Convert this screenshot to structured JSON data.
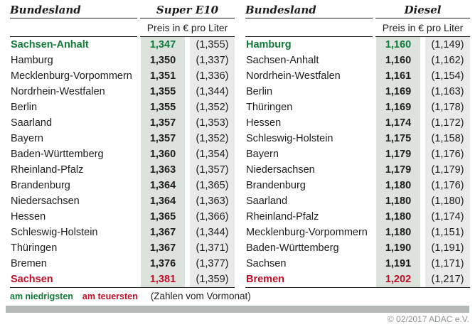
{
  "colors": {
    "green": "#107a38",
    "red": "#c00d25",
    "text": "#1d1d1b",
    "col1_bg": "#dce2dc",
    "col2_bg": "#e9eae9",
    "bar": "#b4bab7",
    "copyright": "#8d9391"
  },
  "header": {
    "bundesland_label": "Bundesland",
    "price_unit_label": "Preis in € pro Liter"
  },
  "legend": {
    "cheapest_label": "am niedrigsten",
    "most_expensive_label": "am teuersten",
    "note": "(Zahlen vom Vormonat)"
  },
  "footer": {
    "copyright": "© 02/2017 ADAC e.V."
  },
  "chart_data": [
    {
      "type": "table",
      "title": "Super E10",
      "unit": "Preis in € pro Liter",
      "columns": [
        "Bundesland",
        "Preis",
        "Vormonat"
      ],
      "rows": [
        {
          "name": "Sachsen-Anhalt",
          "price": "1,347",
          "prev": "(1,355)",
          "highlight": "green"
        },
        {
          "name": "Hamburg",
          "price": "1,350",
          "prev": "(1,337)",
          "highlight": "none"
        },
        {
          "name": "Mecklenburg-Vorpommern",
          "price": "1,351",
          "prev": "(1,336)",
          "highlight": "none"
        },
        {
          "name": "Nordrhein-Westfalen",
          "price": "1,355",
          "prev": "(1,344)",
          "highlight": "none"
        },
        {
          "name": "Berlin",
          "price": "1,355",
          "prev": "(1,352)",
          "highlight": "none"
        },
        {
          "name": "Saarland",
          "price": "1,357",
          "prev": "(1,353)",
          "highlight": "none"
        },
        {
          "name": "Bayern",
          "price": "1,357",
          "prev": "(1,352)",
          "highlight": "none"
        },
        {
          "name": "Baden-Württemberg",
          "price": "1,360",
          "prev": "(1,354)",
          "highlight": "none"
        },
        {
          "name": "Rheinland-Pfalz",
          "price": "1,363",
          "prev": "(1,357)",
          "highlight": "none"
        },
        {
          "name": "Brandenburg",
          "price": "1,364",
          "prev": "(1,365)",
          "highlight": "none"
        },
        {
          "name": "Niedersachsen",
          "price": "1,364",
          "prev": "(1,363)",
          "highlight": "none"
        },
        {
          "name": "Hessen",
          "price": "1,365",
          "prev": "(1,366)",
          "highlight": "none"
        },
        {
          "name": "Schleswig-Holstein",
          "price": "1,367",
          "prev": "(1,344)",
          "highlight": "none"
        },
        {
          "name": "Thüringen",
          "price": "1,367",
          "prev": "(1,371)",
          "highlight": "none"
        },
        {
          "name": "Bremen",
          "price": "1,376",
          "prev": "(1,377)",
          "highlight": "none"
        },
        {
          "name": "Sachsen",
          "price": "1,381",
          "prev": "(1,359)",
          "highlight": "red"
        }
      ]
    },
    {
      "type": "table",
      "title": "Diesel",
      "unit": "Preis in € pro Liter",
      "columns": [
        "Bundesland",
        "Preis",
        "Vormonat"
      ],
      "rows": [
        {
          "name": "Hamburg",
          "price": "1,160",
          "prev": "(1,149)",
          "highlight": "green"
        },
        {
          "name": "Sachsen-Anhalt",
          "price": "1,160",
          "prev": "(1,162)",
          "highlight": "none"
        },
        {
          "name": "Nordrhein-Westfalen",
          "price": "1,161",
          "prev": "(1,154)",
          "highlight": "none"
        },
        {
          "name": "Berlin",
          "price": "1,169",
          "prev": "(1,163)",
          "highlight": "none"
        },
        {
          "name": "Thüringen",
          "price": "1,169",
          "prev": "(1,178)",
          "highlight": "none"
        },
        {
          "name": "Hessen",
          "price": "1,174",
          "prev": "(1,172)",
          "highlight": "none"
        },
        {
          "name": "Schleswig-Holstein",
          "price": "1,175",
          "prev": "(1,158)",
          "highlight": "none"
        },
        {
          "name": "Bayern",
          "price": "1,179",
          "prev": "(1,176)",
          "highlight": "none"
        },
        {
          "name": "Niedersachsen",
          "price": "1,179",
          "prev": "(1,179)",
          "highlight": "none"
        },
        {
          "name": "Brandenburg",
          "price": "1,180",
          "prev": "(1,176)",
          "highlight": "none"
        },
        {
          "name": "Saarland",
          "price": "1,180",
          "prev": "(1,180)",
          "highlight": "none"
        },
        {
          "name": "Rheinland-Pfalz",
          "price": "1,180",
          "prev": "(1,174)",
          "highlight": "none"
        },
        {
          "name": "Mecklenburg-Vorpommern",
          "price": "1,180",
          "prev": "(1,151)",
          "highlight": "none"
        },
        {
          "name": "Baden-Württemberg",
          "price": "1,190",
          "prev": "(1,191)",
          "highlight": "none"
        },
        {
          "name": "Sachsen",
          "price": "1,191",
          "prev": "(1,171)",
          "highlight": "none"
        },
        {
          "name": "Bremen",
          "price": "1,202",
          "prev": "(1,217)",
          "highlight": "red"
        }
      ]
    }
  ]
}
